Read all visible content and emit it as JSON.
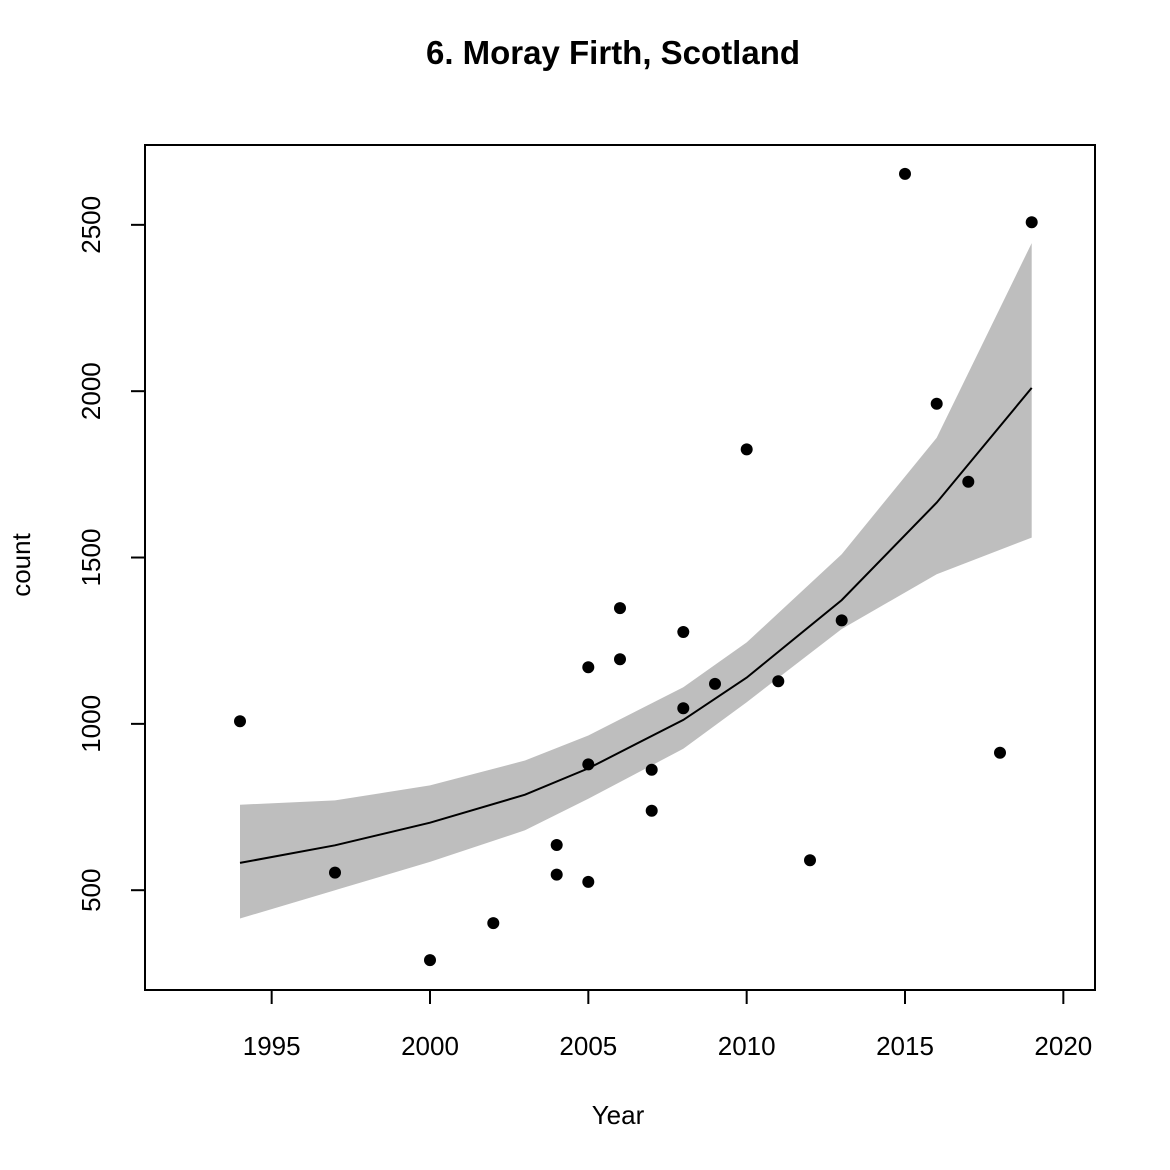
{
  "chart_data": {
    "type": "scatter",
    "title": "6. Moray Firth, Scotland",
    "xlabel": "Year",
    "ylabel": "count",
    "xlim": [
      1991,
      2021
    ],
    "ylim": [
      200,
      2740
    ],
    "x_ticks": [
      1995,
      2000,
      2005,
      2010,
      2015,
      2020
    ],
    "y_ticks": [
      500,
      1000,
      1500,
      2000,
      2500
    ],
    "grid": false,
    "points": [
      {
        "x": 1994,
        "y": 1008
      },
      {
        "x": 1997,
        "y": 553
      },
      {
        "x": 2000,
        "y": 290
      },
      {
        "x": 2002,
        "y": 401
      },
      {
        "x": 2004,
        "y": 636
      },
      {
        "x": 2004,
        "y": 547
      },
      {
        "x": 2005,
        "y": 525
      },
      {
        "x": 2005,
        "y": 1170
      },
      {
        "x": 2005,
        "y": 878
      },
      {
        "x": 2006,
        "y": 1348
      },
      {
        "x": 2006,
        "y": 1194
      },
      {
        "x": 2007,
        "y": 862
      },
      {
        "x": 2007,
        "y": 739
      },
      {
        "x": 2008,
        "y": 1276
      },
      {
        "x": 2008,
        "y": 1047
      },
      {
        "x": 2009,
        "y": 1120
      },
      {
        "x": 2010,
        "y": 1825
      },
      {
        "x": 2011,
        "y": 1128
      },
      {
        "x": 2012,
        "y": 590
      },
      {
        "x": 2013,
        "y": 1311
      },
      {
        "x": 2015,
        "y": 2653
      },
      {
        "x": 2016,
        "y": 1962
      },
      {
        "x": 2017,
        "y": 1728
      },
      {
        "x": 2018,
        "y": 913
      },
      {
        "x": 2019,
        "y": 2508
      }
    ],
    "fit_line": {
      "x": [
        1994,
        1997,
        2000,
        2003,
        2005,
        2008,
        2010,
        2013,
        2016,
        2019
      ],
      "y": [
        582,
        635,
        703,
        787,
        866,
        1012,
        1139,
        1372,
        1665,
        2010
      ]
    },
    "confidence_band": {
      "x": [
        1994,
        1997,
        2000,
        2003,
        2005,
        2008,
        2010,
        2013,
        2016,
        2019
      ],
      "lower": [
        415,
        500,
        585,
        680,
        775,
        925,
        1065,
        1285,
        1450,
        1560
      ],
      "upper": [
        757,
        770,
        815,
        890,
        965,
        1110,
        1245,
        1510,
        1860,
        2445
      ]
    },
    "colors": {
      "points": "#000000",
      "fit_line": "#000000",
      "band": "#bebebe",
      "frame": "#000000"
    }
  }
}
